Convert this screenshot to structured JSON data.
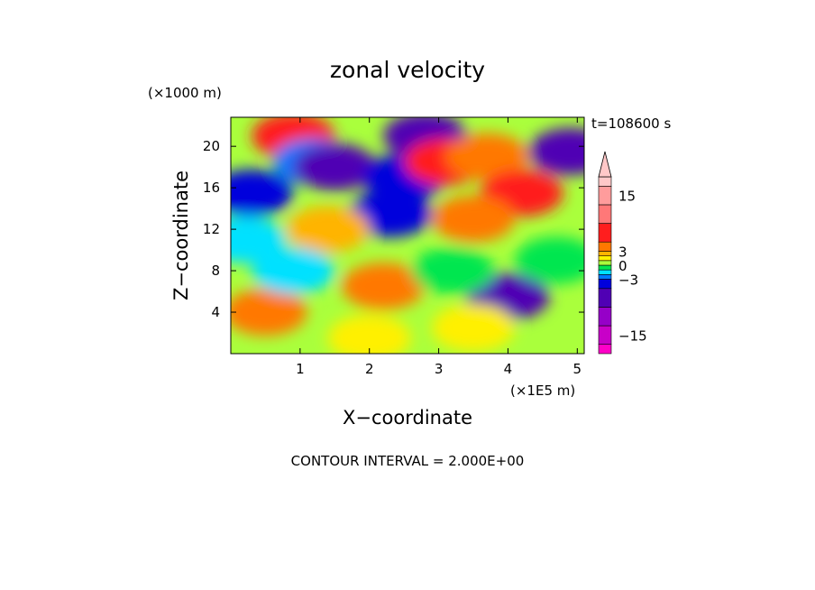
{
  "chart_data": {
    "type": "heatmap",
    "title": "zonal velocity",
    "xlabel": "X−coordinate",
    "ylabel": "Z−coordinate",
    "x_unit_label": "(×1E5 m)",
    "y_unit_label": "(×1000 m)",
    "time_label": "t=108600 s",
    "footer": "CONTOUR INTERVAL = 2.000E+00",
    "xlim": [
      0,
      5.1
    ],
    "ylim": [
      0,
      22.8
    ],
    "x_ticks": [
      1,
      2,
      3,
      4,
      5
    ],
    "y_ticks": [
      4,
      8,
      12,
      16,
      20
    ],
    "colorbar": {
      "range": [
        -19,
        19
      ],
      "interval": 2,
      "tick_labels": [
        {
          "value": 15,
          "text": "15"
        },
        {
          "value": 3,
          "text": "3"
        },
        {
          "value": 0,
          "text": "0"
        },
        {
          "value": -3,
          "text": "−3"
        },
        {
          "value": -15,
          "text": "−15"
        }
      ],
      "colors": [
        {
          "min": -19,
          "max": -17,
          "color": "#ff00c8"
        },
        {
          "min": -17,
          "max": -13,
          "color": "#c800c8"
        },
        {
          "min": -13,
          "max": -9,
          "color": "#9600c8"
        },
        {
          "min": -9,
          "max": -5,
          "color": "#5000b4"
        },
        {
          "min": -5,
          "max": -3,
          "color": "#0000dc"
        },
        {
          "min": -3,
          "max": -2,
          "color": "#0078ff"
        },
        {
          "min": -2,
          "max": -1,
          "color": "#00e1ff"
        },
        {
          "min": -1,
          "max": 0,
          "color": "#00e650"
        },
        {
          "min": 0,
          "max": 1,
          "color": "#aaff3c"
        },
        {
          "min": 1,
          "max": 2,
          "color": "#fff000"
        },
        {
          "min": 2,
          "max": 3,
          "color": "#ffb400"
        },
        {
          "min": 3,
          "max": 5,
          "color": "#ff7800"
        },
        {
          "min": 5,
          "max": 9,
          "color": "#ff1e1e"
        },
        {
          "min": 9,
          "max": 13,
          "color": "#ff7878"
        },
        {
          "min": 13,
          "max": 17,
          "color": "#ff9c9c"
        },
        {
          "min": 17,
          "max": 19,
          "color": "#ffc8c8"
        }
      ]
    },
    "field_features": [
      {
        "x": 0.9,
        "z": 21.0,
        "u": 5
      },
      {
        "x": 0.3,
        "z": 15.5,
        "u": -5
      },
      {
        "x": 1.2,
        "z": 18.5,
        "u": -3
      },
      {
        "x": 0.2,
        "z": 11.0,
        "u": -2
      },
      {
        "x": 1.5,
        "z": 18.0,
        "u": -6
      },
      {
        "x": 2.8,
        "z": 21.0,
        "u": -6
      },
      {
        "x": 2.5,
        "z": 17.0,
        "u": -5
      },
      {
        "x": 2.3,
        "z": 13.5,
        "u": -5
      },
      {
        "x": 3.1,
        "z": 18.5,
        "u": 6
      },
      {
        "x": 3.7,
        "z": 19.0,
        "u": 4
      },
      {
        "x": 4.9,
        "z": 19.5,
        "u": -7
      },
      {
        "x": 4.2,
        "z": 15.5,
        "u": 5
      },
      {
        "x": 3.5,
        "z": 13.0,
        "u": 3
      },
      {
        "x": 1.4,
        "z": 12.0,
        "u": 2
      },
      {
        "x": 0.5,
        "z": 4.0,
        "u": 3
      },
      {
        "x": 2.2,
        "z": 6.5,
        "u": 3
      },
      {
        "x": 4.0,
        "z": 5.5,
        "u": -6
      },
      {
        "x": 2.0,
        "z": 1.5,
        "u": 1
      },
      {
        "x": 3.5,
        "z": 2.5,
        "u": 1
      },
      {
        "x": 4.7,
        "z": 9.0,
        "u": -1
      },
      {
        "x": 3.2,
        "z": 8.0,
        "u": -1
      },
      {
        "x": 0.9,
        "z": 8.0,
        "u": -2
      }
    ]
  }
}
